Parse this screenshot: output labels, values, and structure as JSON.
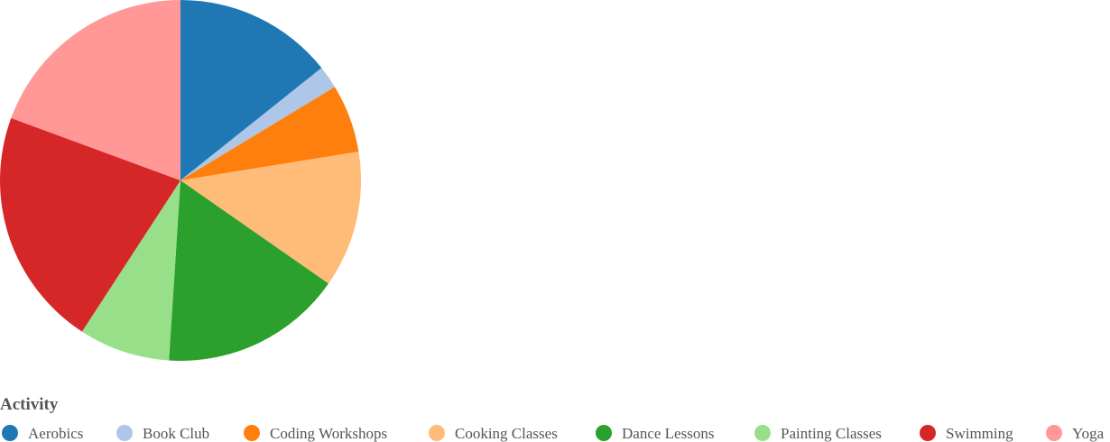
{
  "chart_data": {
    "type": "pie",
    "legend": {
      "title": "Activity",
      "placement": "bottom-left"
    },
    "series": [
      {
        "slices": [
          {
            "label": "Aerobics",
            "value": 14,
            "color": "#1f77b4"
          },
          {
            "label": "Book Club",
            "value": 2,
            "color": "#aec7e8"
          },
          {
            "label": "Coding Workshops",
            "value": 6,
            "color": "#ff7f0e"
          },
          {
            "label": "Cooking Classes",
            "value": 12,
            "color": "#ffbb78"
          },
          {
            "label": "Dance Lessons",
            "value": 16,
            "color": "#2ca02c"
          },
          {
            "label": "Painting Classes",
            "value": 8,
            "color": "#98df8a"
          },
          {
            "label": "Swimming",
            "value": 21,
            "color": "#d62728"
          },
          {
            "label": "Yoga",
            "value": 19,
            "color": "#ff9896"
          }
        ]
      }
    ]
  }
}
